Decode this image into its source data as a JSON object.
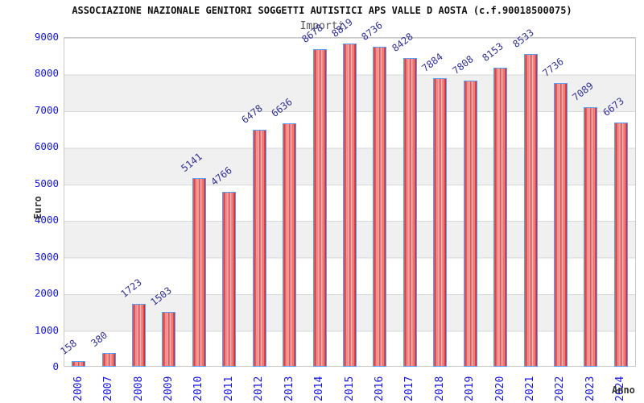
{
  "chart_data": {
    "type": "bar",
    "title": "ASSOCIAZIONE NAZIONALE GENITORI SOGGETTI AUTISTICI APS VALLE D AOSTA (c.f.90018500075)",
    "subtitle": "Importi",
    "xlabel": "Anno",
    "ylabel": "Euro",
    "categories": [
      "2006",
      "2007",
      "2008",
      "2009",
      "2010",
      "2011",
      "2012",
      "2013",
      "2014",
      "2015",
      "2016",
      "2017",
      "2018",
      "2019",
      "2020",
      "2021",
      "2022",
      "2023",
      "2024"
    ],
    "values": [
      158,
      380,
      1723,
      1503,
      5141,
      4766,
      6478,
      6636,
      8678,
      8819,
      8736,
      8428,
      7884,
      7808,
      8153,
      8533,
      7736,
      7089,
      6673
    ],
    "ylim": [
      0,
      9000
    ],
    "ytick_step": 1000,
    "grid": "horizontal-bands-alternating",
    "legend": "none",
    "colors": {
      "bar_fill": "#dc4a4a",
      "bar_border": "#5b9ef5",
      "value_label": "#333399",
      "tick_label": "#1616dd",
      "band_alt": "#f0f0f0",
      "axis_label": "#333333",
      "title": "#111111",
      "subtitle": "#555555"
    }
  }
}
